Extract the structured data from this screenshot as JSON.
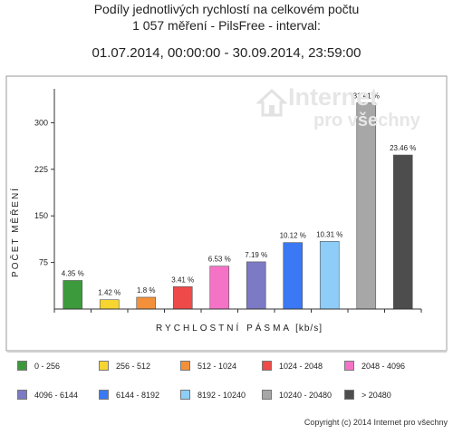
{
  "header": {
    "line1": "Podíly jednotlivých rychlostí na celkovém počtu",
    "line2": "1 057 měření - PilsFree - interval:",
    "line3": "01.07.2014, 00:00:00 - 30.09.2014, 23:59:00"
  },
  "watermark": {
    "line1": "Internet",
    "line2": "pro všechny"
  },
  "footer": {
    "copyright": "Copyright (c) 2014 Internet pro všechny"
  },
  "chart_data": {
    "type": "bar",
    "xlabel": "RYCHLOSTNÍ PÁSMA",
    "xlabel_unit": "[kb/s]",
    "ylabel": "POČET MĚŘENÍ",
    "ylim": [
      0,
      340
    ],
    "yticks": [
      75,
      150,
      225,
      300
    ],
    "grid": false,
    "legend_position": "bottom",
    "categories": [
      "0 - 256",
      "256 - 512",
      "512 - 1024",
      "1024 - 2048",
      "2048 - 4096",
      "4096 - 6144",
      "6144 - 8192",
      "8192 - 10240",
      "10240 - 20480",
      "> 20480"
    ],
    "values": [
      46,
      15,
      19,
      36,
      69,
      76,
      107,
      109,
      332,
      248
    ],
    "labels": [
      "4.35 %",
      "1.42 %",
      "1.8 %",
      "3.41 %",
      "6.53 %",
      "7.19 %",
      "10.12 %",
      "10.31 %",
      "31.41 %",
      "23.46 %"
    ],
    "colors": [
      "#3c9a3c",
      "#f7d531",
      "#f3913a",
      "#ef4a4a",
      "#f573c7",
      "#7c7ac4",
      "#3a78f4",
      "#8dcdf7",
      "#a7a7a7",
      "#4d4d4d"
    ]
  }
}
